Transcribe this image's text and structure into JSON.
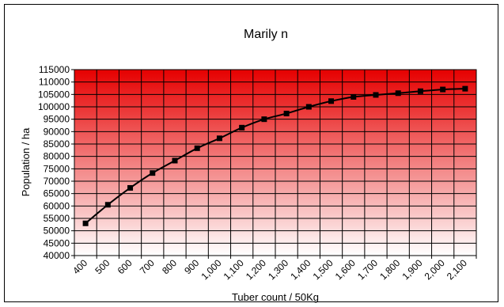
{
  "chart_data": {
    "type": "line",
    "title": "Marily n",
    "xlabel": "Tuber count / 50Kg",
    "ylabel": "Population / ha",
    "categories": [
      "400",
      "500",
      "600",
      "700",
      "800",
      "900",
      "1,000",
      "1,100",
      "1,200",
      "1,300",
      "1,400",
      "1,500",
      "1,600",
      "1,700",
      "1,800",
      "1,900",
      "2,000",
      "2,100"
    ],
    "x": [
      400,
      500,
      600,
      700,
      800,
      900,
      1000,
      1100,
      1200,
      1300,
      1400,
      1500,
      1600,
      1700,
      1800,
      1900,
      2000,
      2100
    ],
    "series": [
      {
        "name": "",
        "values": [
          53000,
          60500,
          67300,
          73300,
          78300,
          83300,
          87300,
          91600,
          95000,
          97300,
          100000,
          102300,
          104000,
          104800,
          105500,
          106300,
          107000,
          107300
        ]
      }
    ],
    "ylim": [
      40000,
      115000
    ],
    "yticks": [
      "40000",
      "45000",
      "50000",
      "55000",
      "60000",
      "65000",
      "70000",
      "75000",
      "80000",
      "85000",
      "90000",
      "95000",
      "100000",
      "105000",
      "110000",
      "115000"
    ],
    "grid": true,
    "legend": "none",
    "colors": {
      "plot_top": "#e60000",
      "plot_bottom": "#ffffff",
      "line": "#000000",
      "marker": "#000000",
      "grid": "#000000"
    }
  }
}
